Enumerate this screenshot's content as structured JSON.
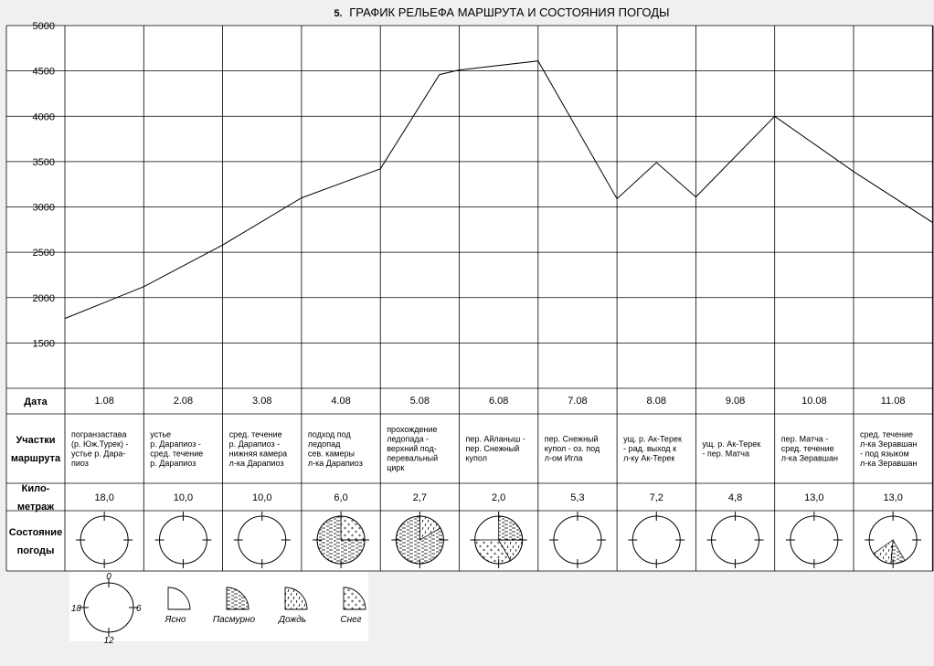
{
  "chart_data": {
    "type": "line",
    "title_number": "5.",
    "title": "ГРАФИК РЕЛЬЕФА МАРШРУТА И СОСТОЯНИЯ ПОГОДЫ",
    "ylim": [
      1000,
      5000
    ],
    "y_ticks": [
      1500,
      2000,
      2500,
      3000,
      3500,
      4000,
      4500,
      5000
    ],
    "grid": true,
    "x": [
      0,
      1,
      2,
      3,
      4,
      4.75,
      5,
      6,
      7,
      7.5,
      8,
      9,
      10,
      11
    ],
    "y": [
      1770,
      2120,
      2580,
      3100,
      3420,
      4460,
      4510,
      4610,
      3090,
      3490,
      3110,
      4000,
      3390,
      2830
    ]
  },
  "table": {
    "headers": {
      "date": "Дата",
      "route": [
        "Участки",
        "маршрута"
      ],
      "km": [
        "Кило-",
        "метраж"
      ],
      "weather": [
        "Состояние",
        "погоды"
      ]
    },
    "days": [
      {
        "date": "1.08",
        "route": [
          "погранзастава",
          "(р. Юж.Турек) -",
          "устье р. Дара-",
          "пиоз"
        ],
        "km": "18,0",
        "weather": "clear"
      },
      {
        "date": "2.08",
        "route": [
          "устье",
          "р. Дарапиоз -",
          "сред. течение",
          "р. Дарапиоз"
        ],
        "km": "10,0",
        "weather": "clear"
      },
      {
        "date": "3.08",
        "route": [
          "сред. течение",
          "р. Дарапиоз -",
          "нижняя камера",
          "л-ка Дарапиоз"
        ],
        "km": "10,0",
        "weather": "clear"
      },
      {
        "date": "4.08",
        "route": [
          "подход под",
          "ледопад",
          "сев. камеры",
          "л-ка Дарапиоз"
        ],
        "km": "6,0",
        "weather": "mixed-cloud-snow"
      },
      {
        "date": "5.08",
        "route": [
          "прохождение",
          "ледопада -",
          "верхний под-",
          "перевальный",
          "цирк"
        ],
        "km": "2,7",
        "weather": "mixed-cloud-rain"
      },
      {
        "date": "6.08",
        "route": [
          "пер. Айланыш -",
          "пер. Снежный",
          "купол"
        ],
        "km": "2,0",
        "weather": "mixed-cloud-snow-rain"
      },
      {
        "date": "7.08",
        "route": [
          "пер. Снежный",
          "купол - оз. под",
          "л-ом Игла"
        ],
        "km": "5,3",
        "weather": "clear"
      },
      {
        "date": "8.08",
        "route": [
          "ущ. р. Ак-Терек",
          "- рад. выход к",
          "л-ку Ак-Терек"
        ],
        "km": "7,2",
        "weather": "clear"
      },
      {
        "date": "9.08",
        "route": [
          "ущ. р. Ак-Терек",
          "- пер. Матча"
        ],
        "km": "4,8",
        "weather": "clear"
      },
      {
        "date": "10.08",
        "route": [
          "пер. Матча -",
          "сред. течение",
          "л-ка Зеравшан"
        ],
        "km": "13,0",
        "weather": "clear"
      },
      {
        "date": "11.08",
        "route": [
          "сред. течение",
          "л-ка Зеравшан",
          "- под языком",
          "л-ка Зеравшан"
        ],
        "km": "13,0",
        "weather": "mixed-cloud-rain-small"
      }
    ]
  },
  "legend": {
    "clock": {
      "top": "0",
      "right": "6",
      "bottom": "12",
      "left": "18"
    },
    "items": [
      {
        "label": "Ясно",
        "pattern": "clear"
      },
      {
        "label": "Пасмурно",
        "pattern": "cloudy"
      },
      {
        "label": "Дождь",
        "pattern": "rain"
      },
      {
        "label": "Снег",
        "pattern": "snow"
      }
    ]
  }
}
